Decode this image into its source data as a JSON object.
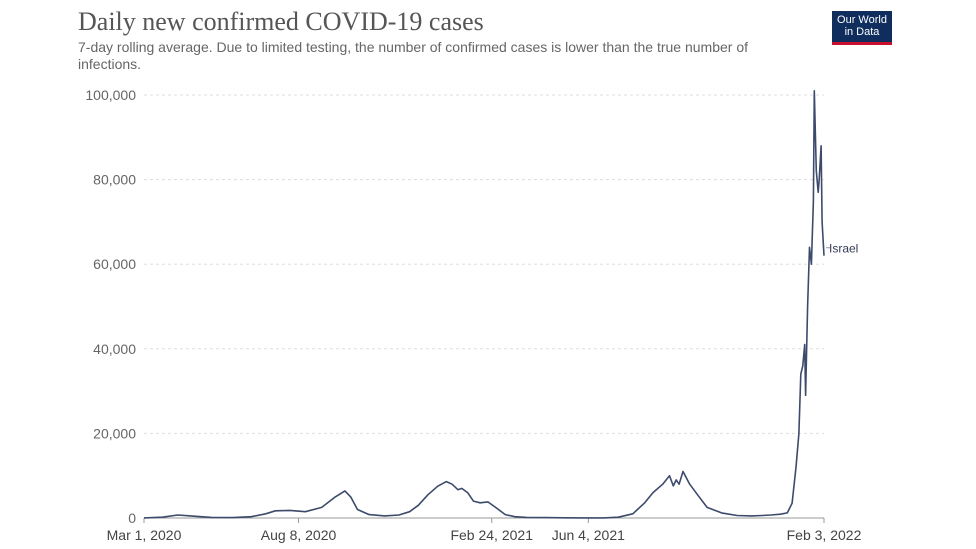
{
  "header": {
    "title": "Daily new confirmed COVID-19 cases",
    "subtitle": "7-day rolling average. Due to limited testing, the number of confirmed cases is lower than the true number of infections.",
    "logo_line1": "Our World",
    "logo_line2": "in Data"
  },
  "colors": {
    "line": "#3c4a6b",
    "grid": "#dddddd",
    "logo_bg": "#0f2e5d",
    "logo_accent": "#c8102e"
  },
  "chart_data": {
    "type": "line",
    "title": "Daily new confirmed COVID-19 cases",
    "subtitle": "7-day rolling average. Due to limited testing, the number of confirmed cases is lower than the true number of infections.",
    "xlabel": "",
    "ylabel": "",
    "xlim": [
      "2020-03-01",
      "2022-02-03"
    ],
    "ylim": [
      0,
      100000
    ],
    "grid": true,
    "y_ticks": [
      0,
      20000,
      40000,
      60000,
      80000,
      100000
    ],
    "y_tick_labels": [
      "0",
      "20,000",
      "40,000",
      "60,000",
      "80,000",
      "100,000"
    ],
    "x_ticks": [
      "2020-03-01",
      "2020-08-08",
      "2021-02-24",
      "2021-06-04",
      "2022-02-03"
    ],
    "x_tick_labels": [
      "Mar 1, 2020",
      "Aug 8, 2020",
      "Feb 24, 2021",
      "Jun 4, 2021",
      "Feb 3, 2022"
    ],
    "series": [
      {
        "name": "Israel",
        "x": [
          "2020-03-01",
          "2020-03-20",
          "2020-04-05",
          "2020-04-20",
          "2020-05-10",
          "2020-06-01",
          "2020-06-20",
          "2020-07-05",
          "2020-07-15",
          "2020-07-30",
          "2020-08-15",
          "2020-09-01",
          "2020-09-15",
          "2020-09-25",
          "2020-10-01",
          "2020-10-08",
          "2020-10-20",
          "2020-11-05",
          "2020-11-20",
          "2020-12-01",
          "2020-12-10",
          "2020-12-20",
          "2020-12-30",
          "2021-01-08",
          "2021-01-14",
          "2021-01-20",
          "2021-01-24",
          "2021-01-30",
          "2021-02-05",
          "2021-02-12",
          "2021-02-20",
          "2021-02-28",
          "2021-03-10",
          "2021-03-20",
          "2021-04-01",
          "2021-04-20",
          "2021-05-10",
          "2021-06-01",
          "2021-06-20",
          "2021-07-05",
          "2021-07-20",
          "2021-08-01",
          "2021-08-10",
          "2021-08-20",
          "2021-08-27",
          "2021-08-31",
          "2021-09-03",
          "2021-09-06",
          "2021-09-10",
          "2021-09-17",
          "2021-09-25",
          "2021-10-05",
          "2021-10-20",
          "2021-11-05",
          "2021-11-20",
          "2021-12-01",
          "2021-12-10",
          "2021-12-20",
          "2021-12-27",
          "2022-01-01",
          "2022-01-05",
          "2022-01-08",
          "2022-01-10",
          "2022-01-12",
          "2022-01-14",
          "2022-01-15",
          "2022-01-17",
          "2022-01-19",
          "2022-01-21",
          "2022-01-23",
          "2022-01-24",
          "2022-01-26",
          "2022-01-28",
          "2022-01-29",
          "2022-01-31",
          "2022-02-01",
          "2022-02-03"
        ],
        "y": [
          30,
          200,
          700,
          450,
          150,
          100,
          300,
          1000,
          1700,
          1800,
          1500,
          2500,
          5000,
          6400,
          5000,
          2000,
          800,
          500,
          700,
          1500,
          3000,
          5500,
          7500,
          8600,
          8000,
          6700,
          7000,
          6000,
          4000,
          3600,
          3800,
          2500,
          800,
          300,
          150,
          100,
          50,
          20,
          30,
          200,
          1000,
          3500,
          6000,
          8000,
          10000,
          7600,
          9000,
          8000,
          11000,
          8000,
          5500,
          2500,
          1200,
          600,
          500,
          600,
          700,
          900,
          1200,
          3500,
          12000,
          20000,
          34000,
          36000,
          41000,
          29000,
          50000,
          64000,
          60000,
          75000,
          101000,
          82000,
          77000,
          80000,
          88000,
          70000,
          62000
        ]
      }
    ]
  }
}
